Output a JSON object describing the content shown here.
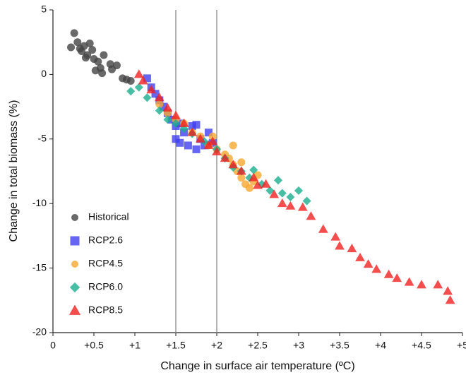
{
  "chart_data": {
    "type": "scatter",
    "x_label": "Change in surface air temperature (ºC)",
    "y_label": "Change in total biomass (%)",
    "xlim": [
      0,
      5
    ],
    "ylim": [
      -20,
      5
    ],
    "xticks": [
      0,
      {
        "value": 0.5,
        "label": "+0.5"
      },
      {
        "value": 1,
        "label": "+1"
      },
      {
        "value": 1.5,
        "label": "+1.5"
      },
      {
        "value": 2,
        "label": "+2"
      },
      {
        "value": 2.5,
        "label": "+2.5"
      },
      {
        "value": 3,
        "label": "+3"
      },
      {
        "value": 3.5,
        "label": "+3.5"
      },
      {
        "value": 4,
        "label": "+4"
      },
      {
        "value": 4.5,
        "label": "+4.5"
      },
      {
        "value": 5,
        "label": "+5"
      }
    ],
    "yticks": [
      5,
      0,
      -5,
      -10,
      -15,
      -20
    ],
    "vlines": [
      1.5,
      2
    ],
    "legend": "lower left",
    "series": [
      {
        "name": "Historical",
        "color": "#444444",
        "marker": "circle",
        "x": [
          0.26,
          0.22,
          0.3,
          0.35,
          0.38,
          0.42,
          0.45,
          0.48,
          0.5,
          0.52,
          0.55,
          0.58,
          0.6,
          0.62,
          0.7,
          0.72,
          0.78,
          0.85,
          0.9,
          0.95,
          0.4,
          0.33
        ],
        "values": [
          3.2,
          2.1,
          2.5,
          1.8,
          2.2,
          1.5,
          2.4,
          1.9,
          1.2,
          0.3,
          1.0,
          0.5,
          0.1,
          1.5,
          0.8,
          0.4,
          0.7,
          -0.3,
          -0.4,
          -0.5,
          1.3,
          2.0
        ]
      },
      {
        "name": "RCP2.6",
        "color": "#4040f0",
        "marker": "square",
        "x": [
          1.15,
          1.2,
          1.25,
          1.3,
          1.35,
          1.4,
          1.45,
          1.5,
          1.5,
          1.55,
          1.6,
          1.65,
          1.7,
          1.75,
          1.8,
          1.85,
          1.9,
          1.95,
          1.55,
          1.75
        ],
        "values": [
          -0.3,
          -1.0,
          -1.5,
          -2.0,
          -2.5,
          -3.0,
          -3.5,
          -4.0,
          -5.0,
          -5.3,
          -4.5,
          -5.5,
          -4.0,
          -5.8,
          -5.0,
          -5.5,
          -4.5,
          -5.3,
          -3.8,
          -3.9
        ]
      },
      {
        "name": "RCP4.5",
        "color": "#f8a830",
        "marker": "circle",
        "x": [
          1.3,
          1.4,
          1.5,
          1.6,
          1.7,
          1.8,
          1.9,
          2.0,
          2.1,
          2.15,
          2.2,
          2.25,
          2.3,
          2.35,
          2.4,
          2.45,
          2.2,
          2.3,
          2.5,
          1.95
        ],
        "values": [
          -2.3,
          -3.0,
          -3.5,
          -3.8,
          -4.5,
          -4.8,
          -5.5,
          -5.8,
          -6.2,
          -6.5,
          -7.0,
          -7.5,
          -8.0,
          -8.5,
          -8.8,
          -8.3,
          -5.5,
          -6.8,
          -7.8,
          -4.8
        ]
      },
      {
        "name": "RCP6.0",
        "color": "#1aaf8f",
        "marker": "diamond",
        "x": [
          0.95,
          1.05,
          1.15,
          1.3,
          1.4,
          1.5,
          1.6,
          1.7,
          1.85,
          2.0,
          2.1,
          2.2,
          2.3,
          2.4,
          2.55,
          2.65,
          2.75,
          2.8,
          2.9,
          3.0,
          3.1,
          2.45
        ],
        "values": [
          -1.3,
          -1.0,
          -1.8,
          -2.8,
          -3.5,
          -3.8,
          -4.2,
          -4.6,
          -5.2,
          -5.8,
          -6.5,
          -7.2,
          -7.5,
          -8.0,
          -8.5,
          -9.0,
          -8.2,
          -9.2,
          -9.5,
          -9.0,
          -9.8,
          -7.4
        ]
      },
      {
        "name": "RCP8.5",
        "color": "#f02020",
        "marker": "triangle",
        "x": [
          1.05,
          1.1,
          1.2,
          1.3,
          1.4,
          1.5,
          1.6,
          1.7,
          1.8,
          1.9,
          2.0,
          2.1,
          2.2,
          2.3,
          2.45,
          2.6,
          2.7,
          2.8,
          2.9,
          3.05,
          3.15,
          3.3,
          3.45,
          3.5,
          3.65,
          3.75,
          3.85,
          3.95,
          4.1,
          4.2,
          4.35,
          4.5,
          4.7,
          4.82,
          4.85,
          1.95,
          2.5
        ],
        "values": [
          0,
          -0.5,
          -1.2,
          -1.8,
          -2.6,
          -3.2,
          -3.8,
          -4.5,
          -5.0,
          -5.5,
          -6.0,
          -6.5,
          -7.0,
          -7.5,
          -8.0,
          -8.5,
          -9.3,
          -10.0,
          -10.2,
          -10.3,
          -11.0,
          -12.0,
          -12.6,
          -13.3,
          -13.5,
          -14.2,
          -14.7,
          -15.1,
          -15.5,
          -15.8,
          -16.1,
          -16.3,
          -16.3,
          -16.8,
          -17.5,
          -5.2,
          -8.6
        ]
      }
    ]
  }
}
